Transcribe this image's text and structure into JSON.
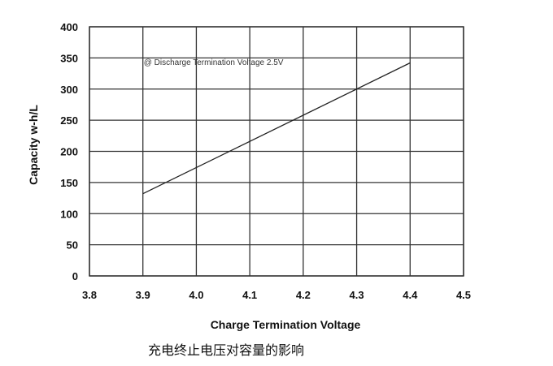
{
  "caption": "充电终止电压对容量的影响",
  "chart_data": {
    "type": "line",
    "title": "",
    "xlabel": "Charge Termination Voltage",
    "ylabel": "Capacity w-h/L",
    "xlim": [
      3.8,
      4.5
    ],
    "ylim": [
      0,
      400
    ],
    "x_ticks": [
      "3.8",
      "3.9",
      "4.0",
      "4.1",
      "4.2",
      "4.3",
      "4.4",
      "4.5"
    ],
    "y_ticks": [
      "0",
      "50",
      "100",
      "150",
      "200",
      "250",
      "300",
      "350",
      "400"
    ],
    "grid": true,
    "series": [
      {
        "x": [
          3.9,
          4.4
        ],
        "y": [
          132,
          342
        ],
        "color": "#222222"
      }
    ],
    "annotations": [
      {
        "text": "@ Discharge Termination Voltage 2.5V",
        "x": 3.9,
        "y": 327
      }
    ]
  }
}
